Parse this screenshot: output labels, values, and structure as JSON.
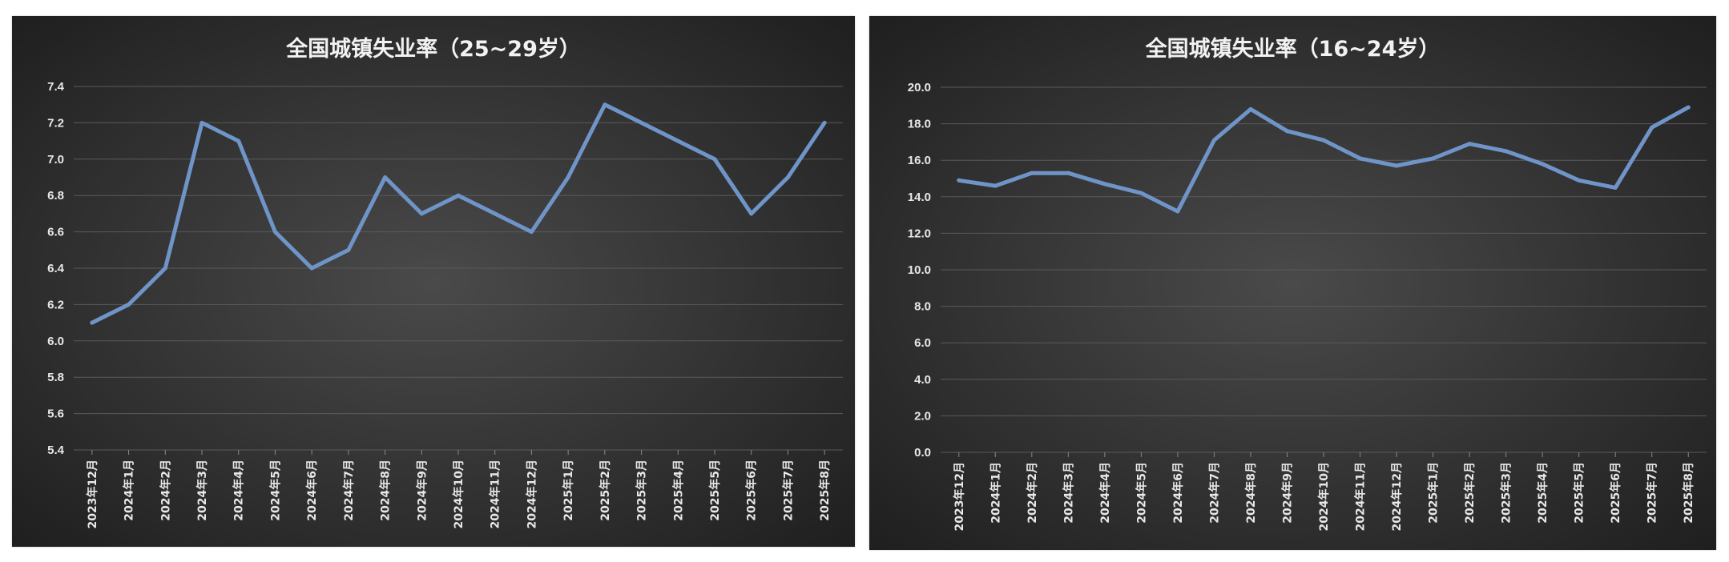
{
  "colors": {
    "line": "#6f94c8",
    "grid": "#5a5a5a",
    "background_center": "#4a4a4a",
    "background_edge": "#1c1c1c"
  },
  "chart_data": [
    {
      "type": "line",
      "title": "全国城镇失业率（25~29岁）",
      "xlabel": "",
      "ylabel": "",
      "categories": [
        "2023年12月",
        "2024年1月",
        "2024年2月",
        "2024年3月",
        "2024年4月",
        "2024年5月",
        "2024年6月",
        "2024年7月",
        "2024年8月",
        "2024年9月",
        "2024年10月",
        "2024年11月",
        "2024年12月",
        "2025年1月",
        "2025年2月",
        "2025年3月",
        "2025年4月",
        "2025年5月",
        "2025年6月",
        "2025年7月",
        "2025年8月"
      ],
      "series": [
        {
          "values": [
            6.1,
            6.2,
            6.4,
            7.2,
            7.1,
            6.6,
            6.4,
            6.5,
            6.9,
            6.7,
            6.8,
            6.7,
            6.6,
            6.9,
            7.3,
            7.2,
            7.1,
            7.0,
            6.7,
            6.9,
            7.2
          ]
        }
      ],
      "ylim": [
        5.4,
        7.4
      ],
      "yticks": [
        "5.4",
        "5.6",
        "5.8",
        "6.0",
        "6.2",
        "6.4",
        "6.6",
        "6.8",
        "7.0",
        "7.2",
        "7.4"
      ],
      "grid": true,
      "legend": "none"
    },
    {
      "type": "line",
      "title": "全国城镇失业率（16~24岁）",
      "xlabel": "",
      "ylabel": "",
      "categories": [
        "2023年12月",
        "2024年1月",
        "2024年2月",
        "2024年3月",
        "2024年4月",
        "2024年5月",
        "2024年6月",
        "2024年7月",
        "2024年8月",
        "2024年9月",
        "2024年10月",
        "2024年11月",
        "2024年12月",
        "2025年1月",
        "2025年2月",
        "2025年3月",
        "2025年4月",
        "2025年5月",
        "2025年6月",
        "2025年7月",
        "2025年8月"
      ],
      "series": [
        {
          "values": [
            14.9,
            14.6,
            15.3,
            15.3,
            14.7,
            14.2,
            13.2,
            17.1,
            18.8,
            17.6,
            17.1,
            16.1,
            15.7,
            16.1,
            16.9,
            16.5,
            15.8,
            14.9,
            14.5,
            17.8,
            18.9
          ]
        }
      ],
      "ylim": [
        0,
        20
      ],
      "yticks": [
        "0.0",
        "2.0",
        "4.0",
        "6.0",
        "8.0",
        "10.0",
        "12.0",
        "14.0",
        "16.0",
        "18.0",
        "20.0"
      ],
      "grid": true,
      "legend": "none"
    }
  ]
}
